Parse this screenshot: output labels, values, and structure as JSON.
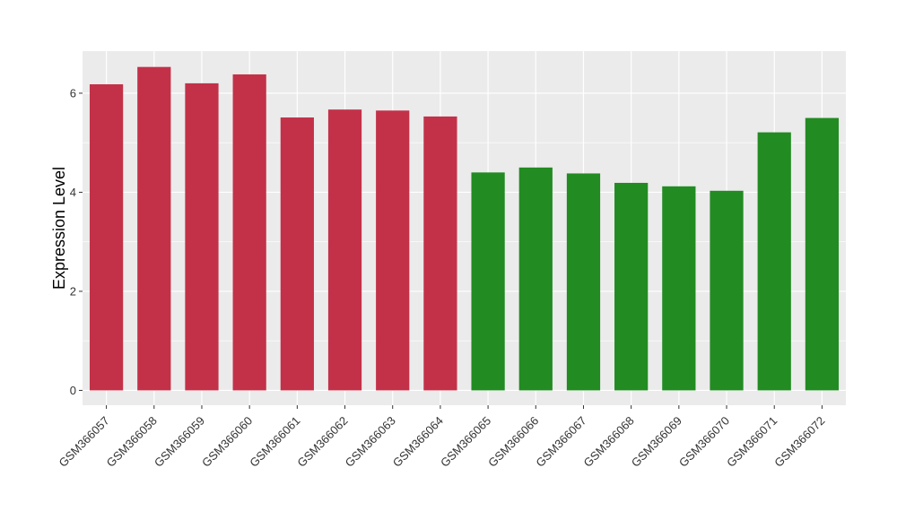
{
  "chart_data": {
    "type": "bar",
    "title": "",
    "xlabel": "",
    "ylabel": "Expression Level",
    "ylim": [
      -0.3,
      6.85
    ],
    "yticks": [
      0,
      2,
      4,
      6
    ],
    "grid": true,
    "categories": [
      "GSM366057",
      "GSM366058",
      "GSM366059",
      "GSM366060",
      "GSM366061",
      "GSM366062",
      "GSM366063",
      "GSM366064",
      "GSM366065",
      "GSM366066",
      "GSM366067",
      "GSM366068",
      "GSM366069",
      "GSM366070",
      "GSM366071",
      "GSM366072"
    ],
    "values": [
      6.18,
      6.53,
      6.2,
      6.38,
      5.51,
      5.67,
      5.65,
      5.53,
      4.4,
      4.5,
      4.38,
      4.19,
      4.12,
      4.03,
      5.21,
      5.5
    ],
    "colors": [
      "#C33149",
      "#C33149",
      "#C33149",
      "#C33149",
      "#C33149",
      "#C33149",
      "#C33149",
      "#C33149",
      "#228B22",
      "#228B22",
      "#228B22",
      "#228B22",
      "#228B22",
      "#228B22",
      "#228B22",
      "#228B22"
    ],
    "panel_background": "#EBEBEB",
    "gridline_color": "#FFFFFF"
  }
}
